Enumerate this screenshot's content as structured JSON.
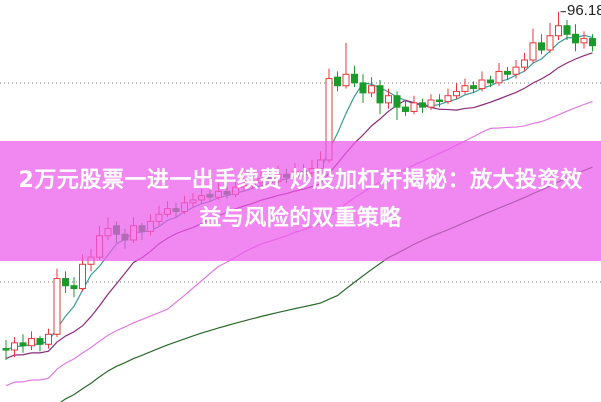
{
  "title": "2万元股票一进一出手续费 炒股加杠杆揭秘：放大投资效益与风险的双重策略",
  "chart_data": {
    "type": "candlestick",
    "max_label": "96.18",
    "grid": "dotted horizontal",
    "colors": {
      "up": "#e8383b",
      "down": "#1a9a2a",
      "ma1": "#3a9a9a",
      "ma2": "#8a2a7a",
      "ma3": "#e27ae2",
      "ma4": "#2a6a2a",
      "banner": "#ec5aec"
    },
    "ohlc": [
      [
        72.6,
        73.2,
        71.8,
        72.5
      ],
      [
        72.5,
        73.4,
        72.0,
        73.0
      ],
      [
        73.0,
        73.6,
        72.3,
        72.8
      ],
      [
        72.8,
        73.8,
        72.5,
        73.3
      ],
      [
        73.3,
        73.5,
        72.4,
        72.9
      ],
      [
        72.9,
        74.0,
        72.6,
        73.6
      ],
      [
        73.6,
        78.2,
        73.4,
        77.5
      ],
      [
        77.5,
        78.0,
        76.5,
        77.0
      ],
      [
        77.0,
        77.6,
        76.2,
        76.8
      ],
      [
        76.8,
        79.2,
        76.6,
        78.5
      ],
      [
        78.5,
        79.6,
        78.0,
        79.0
      ],
      [
        79.0,
        81.2,
        78.8,
        80.5
      ],
      [
        80.5,
        81.8,
        80.2,
        81.0
      ],
      [
        81.2,
        81.5,
        80.0,
        80.6
      ],
      [
        80.6,
        81.0,
        79.6,
        80.2
      ],
      [
        80.2,
        81.8,
        80.0,
        81.2
      ],
      [
        81.2,
        81.4,
        80.2,
        80.8
      ],
      [
        80.8,
        82.0,
        80.5,
        81.5
      ],
      [
        81.5,
        82.6,
        81.2,
        82.0
      ],
      [
        82.0,
        82.9,
        81.8,
        82.4
      ],
      [
        82.4,
        82.8,
        81.8,
        82.2
      ],
      [
        82.2,
        83.3,
        82.0,
        82.8
      ],
      [
        82.8,
        83.5,
        82.5,
        83.0
      ],
      [
        83.0,
        83.8,
        82.8,
        83.3
      ],
      [
        83.4,
        83.9,
        82.9,
        83.2
      ],
      [
        83.2,
        84.2,
        83.0,
        83.6
      ],
      [
        83.6,
        84.0,
        83.1,
        83.4
      ],
      [
        83.4,
        84.4,
        83.2,
        83.9
      ],
      [
        83.9,
        84.5,
        83.6,
        84.0
      ],
      [
        84.0,
        84.8,
        83.8,
        84.2
      ],
      [
        84.2,
        85.0,
        84.0,
        84.5
      ],
      [
        84.6,
        85.0,
        84.0,
        84.3
      ],
      [
        84.3,
        85.4,
        84.1,
        84.8
      ],
      [
        84.8,
        85.2,
        84.2,
        84.6
      ],
      [
        84.6,
        85.6,
        84.4,
        85.0
      ],
      [
        85.0,
        85.5,
        84.6,
        84.9
      ],
      [
        84.9,
        85.8,
        84.6,
        85.2
      ],
      [
        85.2,
        86.4,
        85.0,
        85.8
      ],
      [
        85.8,
        92.2,
        85.6,
        91.5
      ],
      [
        91.6,
        92.0,
        90.6,
        91.0
      ],
      [
        91.0,
        94.0,
        90.8,
        91.8
      ],
      [
        91.8,
        92.4,
        90.9,
        91.2
      ],
      [
        91.2,
        91.8,
        89.8,
        90.5
      ],
      [
        90.5,
        91.6,
        90.2,
        91.0
      ],
      [
        91.0,
        91.4,
        89.0,
        89.8
      ],
      [
        89.8,
        90.8,
        89.4,
        90.3
      ],
      [
        90.3,
        90.6,
        88.6,
        89.5
      ],
      [
        89.5,
        90.0,
        88.9,
        89.2
      ],
      [
        89.2,
        90.3,
        89.0,
        89.8
      ],
      [
        89.8,
        90.1,
        89.1,
        89.5
      ],
      [
        89.5,
        90.4,
        89.3,
        90.0
      ],
      [
        90.0,
        90.4,
        89.5,
        89.9
      ],
      [
        89.9,
        90.8,
        89.7,
        90.3
      ],
      [
        90.3,
        91.2,
        90.1,
        90.6
      ],
      [
        90.6,
        91.5,
        90.4,
        91.0
      ],
      [
        91.0,
        91.3,
        90.5,
        90.8
      ],
      [
        90.8,
        92.0,
        90.6,
        91.4
      ],
      [
        91.4,
        91.7,
        90.9,
        91.2
      ],
      [
        91.2,
        92.6,
        91.0,
        92.0
      ],
      [
        92.0,
        92.3,
        91.4,
        91.8
      ],
      [
        91.8,
        92.8,
        91.5,
        92.3
      ],
      [
        92.3,
        93.3,
        92.0,
        92.8
      ],
      [
        92.8,
        95.0,
        92.6,
        94.0
      ],
      [
        94.0,
        94.6,
        93.2,
        93.5
      ],
      [
        93.5,
        95.4,
        93.3,
        94.5
      ],
      [
        94.5,
        96.18,
        94.2,
        95.2
      ],
      [
        95.2,
        95.6,
        94.2,
        94.6
      ],
      [
        94.6,
        95.3,
        93.4,
        94.0
      ],
      [
        94.0,
        94.8,
        93.6,
        94.3
      ],
      [
        94.3,
        94.6,
        93.4,
        93.8
      ]
    ]
  }
}
